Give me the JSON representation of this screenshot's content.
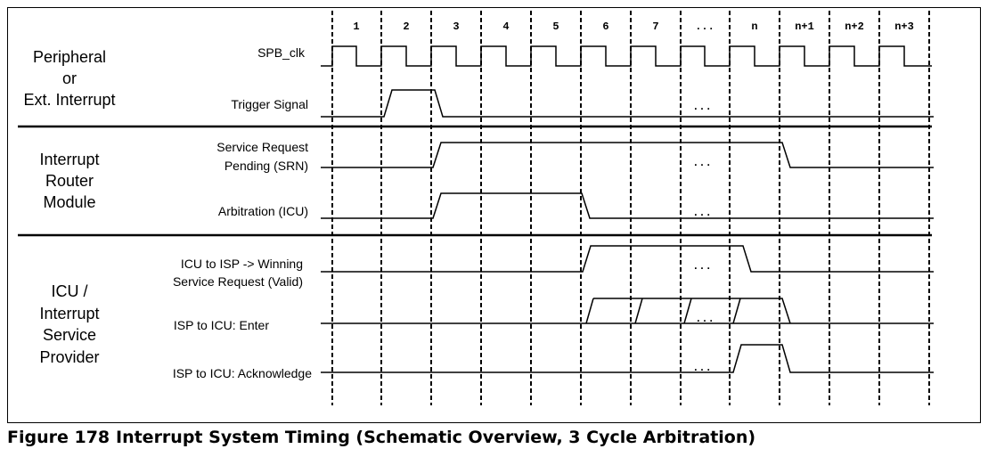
{
  "caption": {
    "number": "Figure 178",
    "title": "Interrupt System Timing (Schematic Overview, 3 Cycle Arbitration)"
  },
  "cycle_labels": [
    "1",
    "2",
    "3",
    "4",
    "5",
    "6",
    "7",
    "...",
    "n",
    "n+1",
    "n+2",
    "n+3"
  ],
  "ellipsis": "...",
  "groups": [
    {
      "id": "peripheral",
      "lines": [
        "Peripheral",
        "or",
        "Ext. Interrupt"
      ]
    },
    {
      "id": "router",
      "lines": [
        "Interrupt",
        "Router",
        "Module"
      ]
    },
    {
      "id": "icu",
      "lines": [
        "ICU /",
        "Interrupt",
        "Service",
        "Provider"
      ]
    }
  ],
  "signals": [
    {
      "id": "spb-clk",
      "lines": [
        "SPB_clk"
      ]
    },
    {
      "id": "trigger",
      "lines": [
        "Trigger Signal"
      ]
    },
    {
      "id": "srn",
      "lines": [
        "Service Request",
        "Pending (SRN)"
      ]
    },
    {
      "id": "arbitration",
      "lines": [
        "Arbitration (ICU)"
      ]
    },
    {
      "id": "winning",
      "lines": [
        "ICU  to  ISP -> Winning",
        "Service Request (Valid)"
      ]
    },
    {
      "id": "enter",
      "lines": [
        "ISP to ICU:  Enter"
      ]
    },
    {
      "id": "ack",
      "lines": [
        "ISP to ICU: Acknowledge"
      ]
    }
  ]
}
